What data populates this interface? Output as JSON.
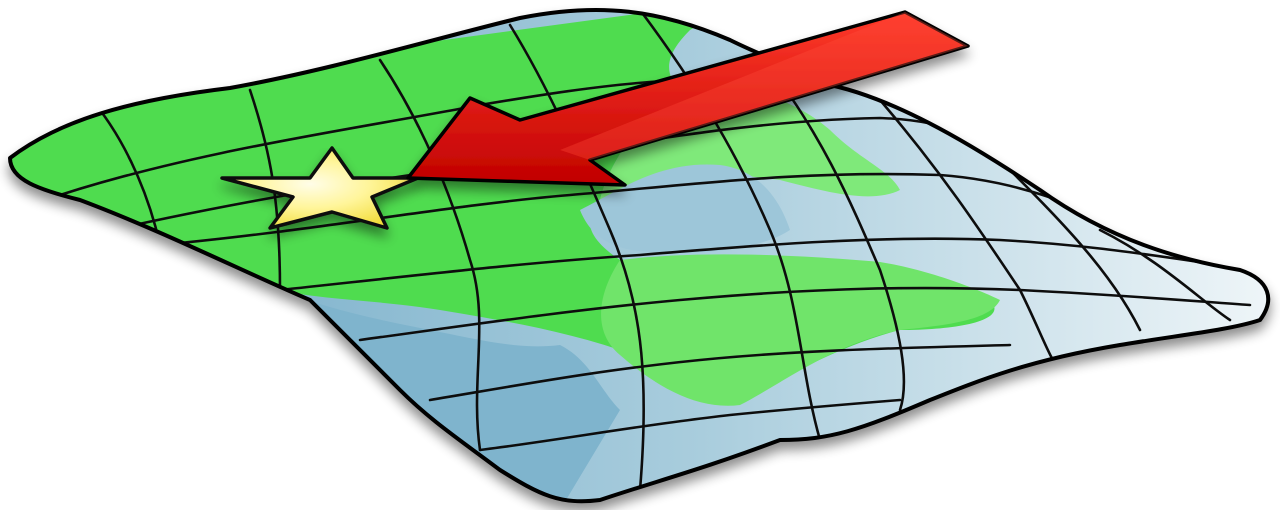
{
  "illustration": {
    "subject": "map-location-clipart",
    "icons": [
      "folded-map-icon",
      "star-icon",
      "arrow-icon"
    ],
    "colors": {
      "background": "#ffffff",
      "land": "#4fdc4f",
      "land_light": "#7ee87a",
      "water": "#8cbcd2",
      "water_light": "#e8f2f6",
      "grid_line": "#111111",
      "outline": "#000000",
      "star_fill": "#fff27a",
      "star_center": "#fffde0",
      "arrow_fill": "#e81212",
      "arrow_dark": "#b00000"
    }
  }
}
